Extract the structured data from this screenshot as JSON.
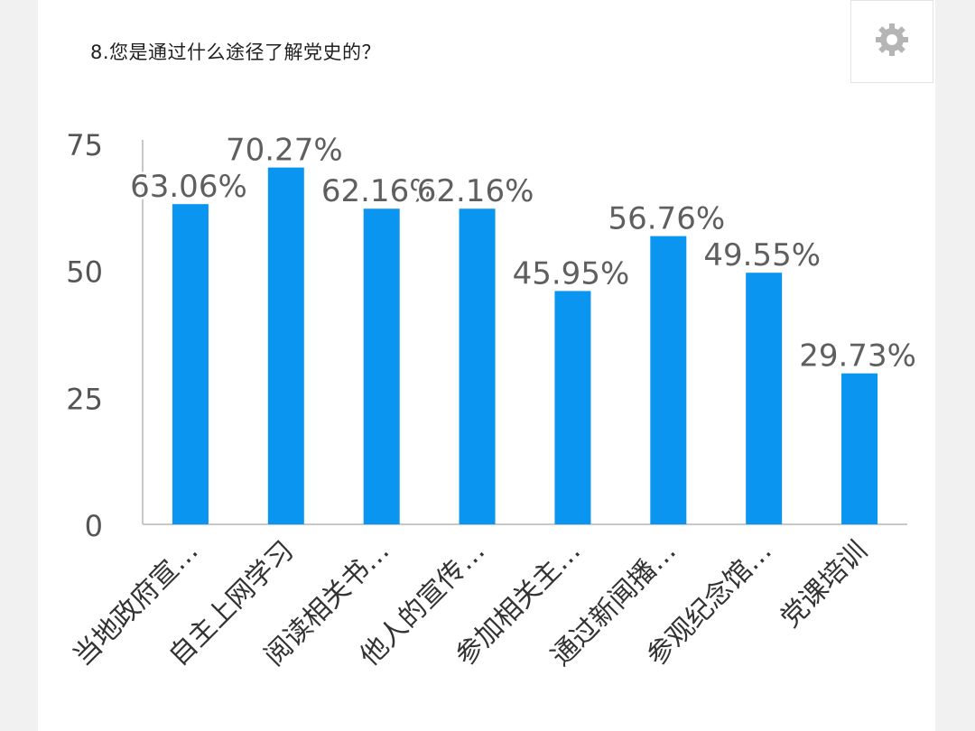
{
  "question": {
    "title": "8.您是通过什么途径了解党史的？"
  },
  "icons": {
    "settings": "gear-icon"
  },
  "colors": {
    "bar": "#0a96f0",
    "axis": "#c8c8c8",
    "label": "#5f5f5f",
    "tick": "#555555"
  },
  "chart_data": {
    "type": "bar",
    "categories": [
      "当地政府宣…",
      "自主上网学习",
      "阅读相关书…",
      "他人的宣传…",
      "参加相关主…",
      "通过新闻播…",
      "参观纪念馆…",
      "党课培训"
    ],
    "values": [
      63.06,
      70.27,
      62.16,
      62.16,
      45.95,
      56.76,
      49.55,
      29.73
    ],
    "value_labels": [
      "63.06%",
      "70.27%",
      "62.16%",
      "62.16%",
      "45.95%",
      "56.76%",
      "49.55%",
      "29.73%"
    ],
    "y_ticks": [
      0,
      25,
      50,
      75
    ],
    "ylim": [
      0,
      75
    ],
    "title": "",
    "xlabel": "",
    "ylabel": "",
    "grid": false,
    "legend": "none"
  }
}
